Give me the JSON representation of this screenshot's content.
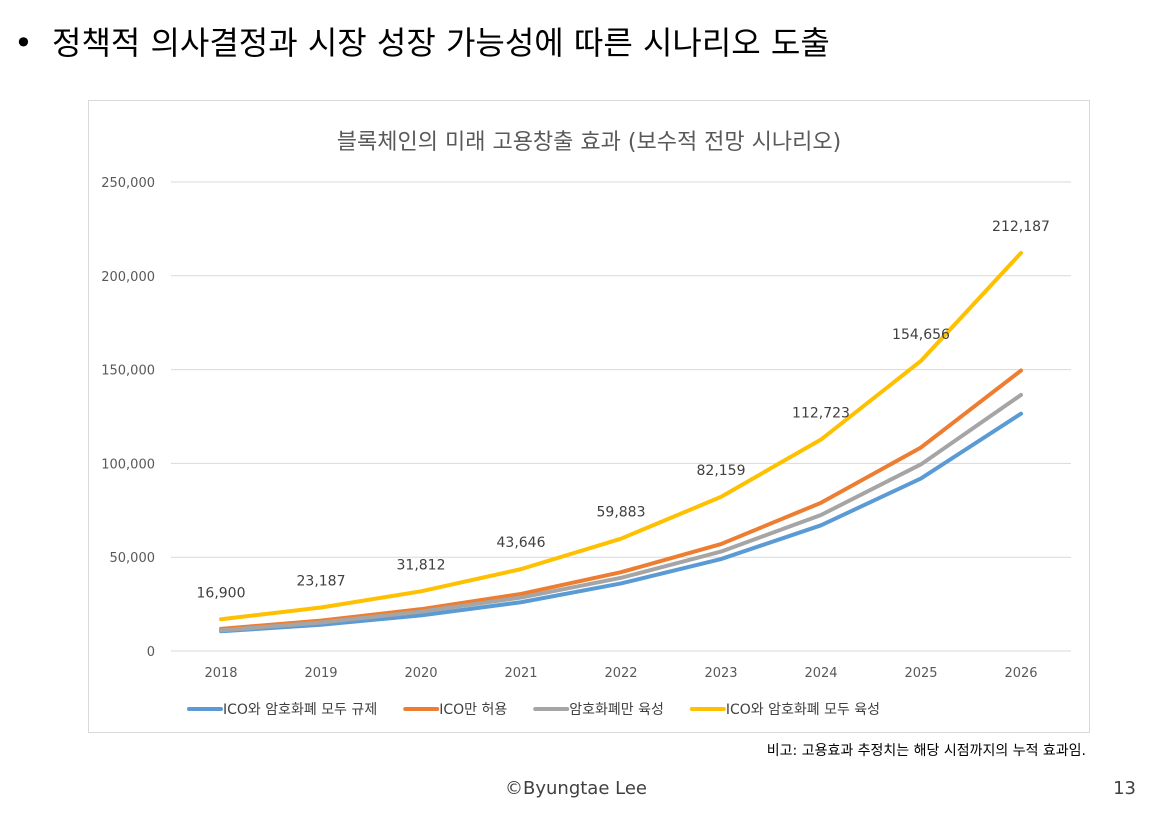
{
  "slide": {
    "bullet": "•",
    "heading": "정책적 의사결정과 시장 성장 가능성에 따른 시나리오 도출",
    "note": "비고: 고용효과 추정치는 해당 시점까지의 누적 효과임.",
    "footer": "©Byungtae Lee",
    "page_number": "13"
  },
  "chart_data": {
    "type": "line",
    "title": "블록체인의 미래 고용창출 효과 (보수적 전망 시나리오)",
    "xlabel": "",
    "ylabel": "",
    "categories": [
      "2018",
      "2019",
      "2020",
      "2021",
      "2022",
      "2023",
      "2024",
      "2025",
      "2026"
    ],
    "ylim": [
      0,
      250000
    ],
    "yticks": [
      0,
      50000,
      100000,
      150000,
      200000,
      250000
    ],
    "ytick_labels": [
      "0",
      "50,000",
      "100,000",
      "150,000",
      "200,000",
      "250,000"
    ],
    "grid": true,
    "legend_position": "bottom",
    "series": [
      {
        "name": "ICO와 암호화폐 모두 규제",
        "color": "#5B9BD5",
        "values": [
          10500,
          14000,
          19000,
          26000,
          36000,
          49000,
          67000,
          92000,
          126500
        ],
        "labels": []
      },
      {
        "name": "ICO만 허용",
        "color": "#ED7D31",
        "values": [
          11800,
          16200,
          22300,
          30400,
          42000,
          57000,
          79000,
          108500,
          149500
        ],
        "labels": []
      },
      {
        "name": "암호화폐만 육성",
        "color": "#A5A5A5",
        "values": [
          11000,
          15200,
          21000,
          28500,
          39000,
          53000,
          72500,
          99500,
          136500
        ],
        "labels": []
      },
      {
        "name": "ICO와 암호화폐 모두 육성",
        "color": "#FFC000",
        "values": [
          16900,
          23187,
          31812,
          43646,
          59883,
          82159,
          112723,
          154656,
          212187
        ],
        "labels": [
          "16,900",
          "23,187",
          "31,812",
          "43,646",
          "59,883",
          "82,159",
          "112,723",
          "154,656",
          "212,187"
        ]
      }
    ]
  }
}
